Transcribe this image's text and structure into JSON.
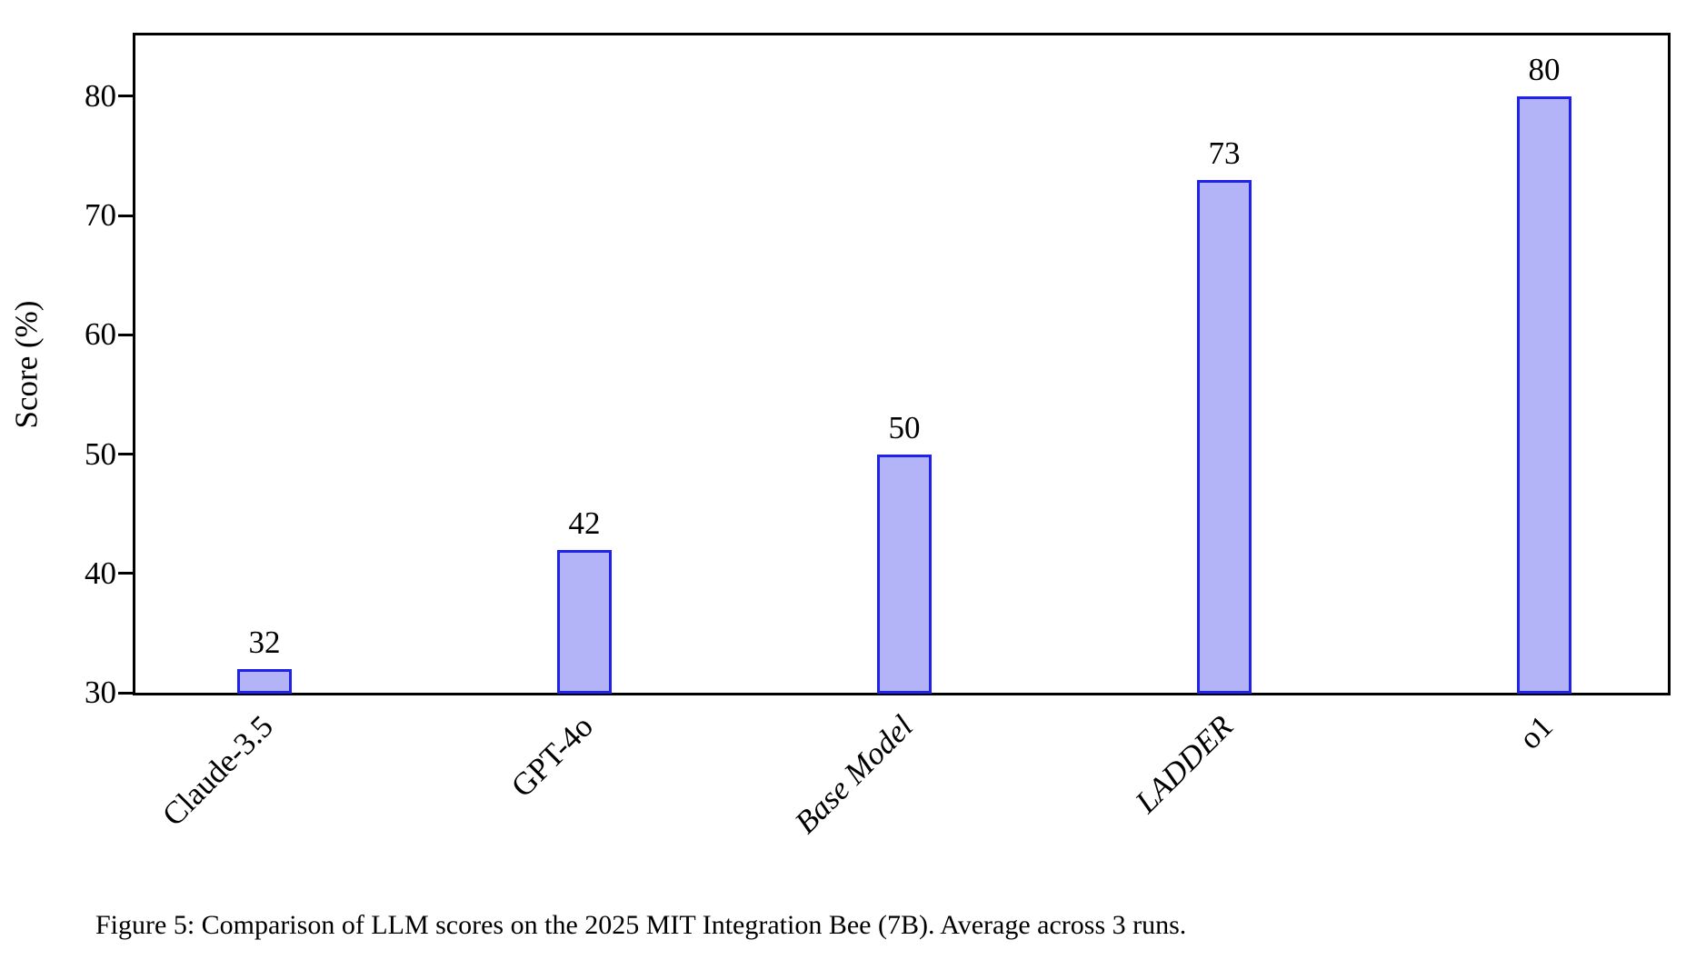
{
  "figure": {
    "caption": "Figure 5: Comparison of LLM scores on the 2025 MIT Integration Bee (7B). Average across 3 runs."
  },
  "chart_data": {
    "type": "bar",
    "title": "",
    "categories": [
      "Claude-3.5",
      "GPT-4o",
      "Base Model",
      "LADDER",
      "o1"
    ],
    "values": [
      32,
      42,
      50,
      73,
      80
    ],
    "bar_value_labels": [
      "32",
      "42",
      "50",
      "73",
      "80"
    ],
    "italic_categories": [
      "Base Model",
      "LADDER"
    ],
    "xlabel": "",
    "ylabel": "Score (%)",
    "yticks": [
      30,
      40,
      50,
      60,
      70,
      80
    ],
    "ylim": [
      30,
      85
    ],
    "grid": false,
    "legend": false,
    "bar_fill_color": "#b3b3f8",
    "bar_edge_color": "#2121ee",
    "axis_color": "#000000"
  }
}
